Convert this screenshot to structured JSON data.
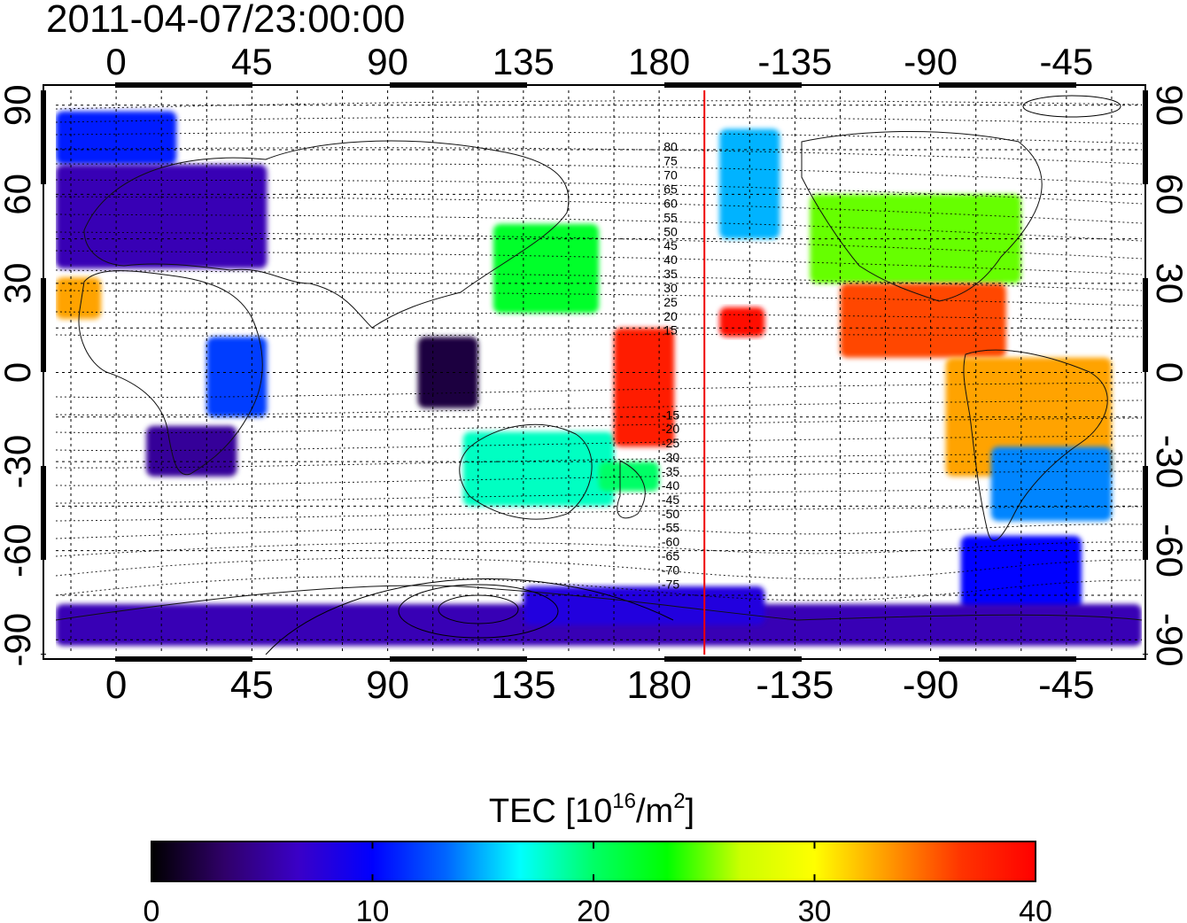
{
  "title": "2011-04-07/23:00:00",
  "axes": {
    "top_ticks": [
      "0",
      "45",
      "90",
      "135",
      "180",
      "-135",
      "-90",
      "-45"
    ],
    "bottom_ticks": [
      "0",
      "45",
      "90",
      "135",
      "180",
      "-135",
      "-90",
      "-45"
    ],
    "lon_tick_values": [
      0,
      45,
      90,
      135,
      180,
      225,
      270,
      315
    ],
    "left_ticks": [
      "90",
      "60",
      "30",
      "0",
      "-30",
      "-60",
      "-90"
    ],
    "right_ticks": [
      "90",
      "60",
      "30",
      "0",
      "-30",
      "-60",
      "-90"
    ],
    "lat_tick_values": [
      90,
      60,
      30,
      0,
      -30,
      -60,
      -90
    ],
    "lon_range": [
      -20,
      340
    ],
    "lat_range": [
      -95,
      95
    ],
    "grid": true
  },
  "contour_labels": [
    "80",
    "75",
    "70",
    "65",
    "60",
    "55",
    "50",
    "45",
    "40",
    "35",
    "30",
    "25",
    "20",
    "15",
    "-15",
    "-20",
    "-25",
    "-30",
    "-35",
    "-40",
    "-45",
    "-50",
    "-55",
    "-60",
    "-65",
    "-70",
    "-75"
  ],
  "red_meridian_lon": 195,
  "colorbar": {
    "title_prefix": "TEC  [10",
    "title_sup1": "16",
    "title_mid": "/m",
    "title_sup2": "2",
    "title_suffix": "]",
    "ticks": [
      "0",
      "10",
      "20",
      "30",
      "40"
    ],
    "tick_values": [
      0,
      10,
      20,
      30,
      40
    ],
    "min": 0,
    "max": 40,
    "colors": [
      "#000000",
      "#30006a",
      "#3a00c8",
      "#0000ff",
      "#0066ff",
      "#00ffff",
      "#00ff66",
      "#00ff00",
      "#ccff00",
      "#ffff00",
      "#ff9900",
      "#ff3300",
      "#ff0000"
    ]
  },
  "chart_data": {
    "type": "heatmap",
    "title": "2011-04-07/23:00:00",
    "quantity": "TEC  [10^16/m^2]",
    "zlim": [
      0,
      40
    ],
    "xlim": [
      -20,
      340
    ],
    "ylim": [
      -95,
      95
    ],
    "regions": [
      {
        "lon": [
          -20,
          20
        ],
        "lat": [
          70,
          88
        ],
        "tec": 11
      },
      {
        "lon": [
          -20,
          50
        ],
        "lat": [
          35,
          70
        ],
        "tec": 6
      },
      {
        "lon": [
          -20,
          -5
        ],
        "lat": [
          18,
          32
        ],
        "tec": 33
      },
      {
        "lon": [
          30,
          50
        ],
        "lat": [
          -15,
          12
        ],
        "tec": 12
      },
      {
        "lon": [
          10,
          40
        ],
        "lat": [
          -35,
          -18
        ],
        "tec": 5
      },
      {
        "lon": [
          100,
          120
        ],
        "lat": [
          -12,
          12
        ],
        "tec": 2
      },
      {
        "lon": [
          125,
          160
        ],
        "lat": [
          20,
          50
        ],
        "tec": 22
      },
      {
        "lon": [
          115,
          165
        ],
        "lat": [
          -45,
          -20
        ],
        "tec": 18
      },
      {
        "lon": [
          160,
          180
        ],
        "lat": [
          -40,
          -30
        ],
        "tec": 20
      },
      {
        "lon": [
          165,
          185
        ],
        "lat": [
          -25,
          15
        ],
        "tec": 38
      },
      {
        "lon": [
          200,
          215
        ],
        "lat": [
          12,
          22
        ],
        "tec": 39
      },
      {
        "lon": [
          200,
          220
        ],
        "lat": [
          45,
          82
        ],
        "tec": 15
      },
      {
        "lon": [
          230,
          300
        ],
        "lat": [
          30,
          60
        ],
        "tec": 25
      },
      {
        "lon": [
          240,
          295
        ],
        "lat": [
          5,
          30
        ],
        "tec": 36
      },
      {
        "lon": [
          275,
          330
        ],
        "lat": [
          -35,
          5
        ],
        "tec": 33
      },
      {
        "lon": [
          290,
          330
        ],
        "lat": [
          -50,
          -25
        ],
        "tec": 14
      },
      {
        "lon": [
          280,
          320
        ],
        "lat": [
          -80,
          -55
        ],
        "tec": 10
      },
      {
        "lon": [
          -20,
          340
        ],
        "lat": [
          -92,
          -78
        ],
        "tec": 6
      },
      {
        "lon": [
          135,
          215
        ],
        "lat": [
          -85,
          -72
        ],
        "tec": 8
      }
    ],
    "marker_line": {
      "lon": 195,
      "color": "#ff0000"
    }
  }
}
